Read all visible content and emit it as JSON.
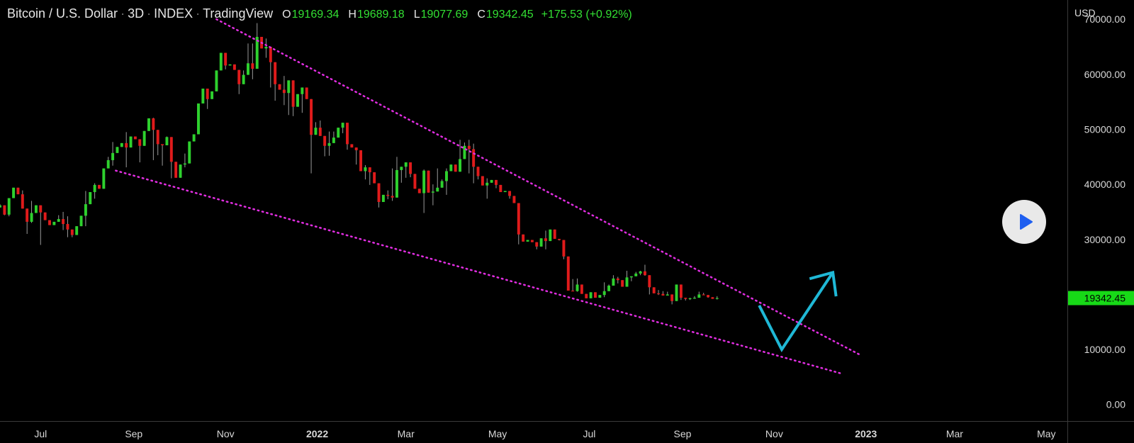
{
  "header": {
    "symbol": "Bitcoin / U.S. Dollar",
    "interval": "3D",
    "exchange": "INDEX",
    "source": "TradingView",
    "open_label": "O",
    "open": "19169.34",
    "high_label": "H",
    "high": "19689.18",
    "low_label": "L",
    "low": "19077.69",
    "close_label": "C",
    "close": "19342.45",
    "change": "+175.53 (+0.92%)"
  },
  "price_axis": {
    "currency": "USD"
  },
  "current_price_label": "19342.45",
  "colors": {
    "up": "#2ed12e",
    "down": "#e01b1b",
    "trendline": "#e22ee2",
    "projection": "#1fb8d6",
    "price_tag": "#17d917",
    "text_green": "#33e033"
  },
  "icons": {
    "play": "play-icon"
  },
  "chart_data": {
    "type": "candlestick",
    "title": "Bitcoin / U.S. Dollar · 3D · INDEX",
    "ylabel": "USD",
    "ylim": [
      -3000,
      73500
    ],
    "xlim": [
      "2021-06-04",
      "2023-05-15"
    ],
    "y_ticks": [
      0,
      10000,
      20000,
      30000,
      40000,
      50000,
      60000,
      70000
    ],
    "y_tick_labels": [
      "0.00",
      "10000.00",
      "20000.00",
      "30000.00",
      "40000.00",
      "50000.00",
      "60000.00",
      "70000.00"
    ],
    "x_ticks": [
      {
        "label": "Jul",
        "date": "2021-07-01",
        "bold": false
      },
      {
        "label": "Sep",
        "date": "2021-09-01",
        "bold": false
      },
      {
        "label": "Nov",
        "date": "2021-11-01",
        "bold": false
      },
      {
        "label": "2022",
        "date": "2022-01-01",
        "bold": true
      },
      {
        "label": "Mar",
        "date": "2022-03-01",
        "bold": false
      },
      {
        "label": "May",
        "date": "2022-05-01",
        "bold": false
      },
      {
        "label": "Jul",
        "date": "2022-07-01",
        "bold": false
      },
      {
        "label": "Sep",
        "date": "2022-09-01",
        "bold": false
      },
      {
        "label": "Nov",
        "date": "2022-11-01",
        "bold": false
      },
      {
        "label": "2023",
        "date": "2023-01-01",
        "bold": true
      },
      {
        "label": "Mar",
        "date": "2023-03-01",
        "bold": false
      },
      {
        "label": "May",
        "date": "2023-05-01",
        "bold": false
      }
    ],
    "start_date": "2021-06-04",
    "period_days": 3,
    "closes": [
      36200,
      34500,
      37500,
      39400,
      38200,
      35600,
      33200,
      34800,
      36200,
      34900,
      33500,
      32600,
      33200,
      33700,
      32800,
      31800,
      30800,
      32400,
      34300,
      36400,
      38600,
      39900,
      39200,
      42900,
      44400,
      45700,
      46800,
      47500,
      46700,
      48700,
      48200,
      47000,
      49700,
      52000,
      49900,
      47300,
      47100,
      48600,
      44100,
      41200,
      43600,
      43800,
      47800,
      49100,
      54700,
      57400,
      55500,
      56900,
      60700,
      63900,
      61600,
      61800,
      60800,
      58200,
      59900,
      62000,
      61000,
      66800,
      64700,
      65000,
      62200,
      58200,
      57200,
      56600,
      58900,
      54100,
      56400,
      57600,
      55500,
      49000,
      50300,
      48800,
      47000,
      47500,
      48500,
      50300,
      51200,
      47300,
      46700,
      46200,
      42400,
      43100,
      42200,
      40200,
      36800,
      38100,
      37900,
      37600,
      42600,
      43200,
      44000,
      41900,
      39200,
      38400,
      42500,
      38500,
      38700,
      39400,
      40600,
      42400,
      43600,
      42300,
      44600,
      47000,
      46400,
      43200,
      41500,
      39800,
      40300,
      40800,
      39900,
      38600,
      38800,
      37900,
      36600,
      30900,
      29600,
      29900,
      29500,
      28700,
      30200,
      29700,
      31800,
      30100,
      29900,
      26900,
      20700,
      20600,
      21800,
      20100,
      19300,
      20400,
      19400,
      19900,
      20600,
      21600,
      22900,
      22600,
      21400,
      23100,
      23300,
      23800,
      24200,
      23500,
      21300,
      20200,
      20100,
      19800,
      20000,
      18800,
      21800,
      19400,
      19200,
      19300,
      19400,
      20000,
      19900,
      19500,
      19200,
      19342
    ],
    "ranges": [
      [
        36400,
        37400
      ],
      [
        34300,
        34400
      ],
      [
        34400,
        34200
      ],
      [
        38000,
        39100
      ],
      [
        36400,
        38400
      ],
      [
        38900,
        42600
      ],
      [
        35600,
        31000
      ],
      [
        37000,
        33000
      ],
      [
        31900,
        37500
      ],
      [
        35700,
        29000
      ],
      [
        32700,
        34000
      ],
      [
        33000,
        33600
      ],
      [
        31800,
        35500
      ],
      [
        34400,
        33700
      ],
      [
        35000,
        31700
      ],
      [
        34200,
        30400
      ],
      [
        30800,
        30400
      ],
      [
        30200,
        35000
      ],
      [
        31200,
        35200
      ],
      [
        38800,
        32400
      ],
      [
        33800,
        39900
      ],
      [
        40200,
        37400
      ],
      [
        38000,
        39700
      ],
      [
        39900,
        43200
      ],
      [
        45000,
        44000
      ],
      [
        47700,
        43400
      ],
      [
        45200,
        47800
      ],
      [
        47500,
        49800
      ],
      [
        49500,
        43100
      ],
      [
        46700,
        49600
      ],
      [
        48300,
        50000
      ],
      [
        45900,
        44000
      ],
      [
        49300,
        49900
      ],
      [
        50600,
        54500
      ],
      [
        52100,
        44400
      ],
      [
        47400,
        45300
      ],
      [
        44400,
        43400
      ],
      [
        48700,
        47300
      ],
      [
        44000,
        41100
      ],
      [
        41100,
        41700
      ],
      [
        42300,
        43500
      ],
      [
        45600,
        43100
      ],
      [
        46700,
        49900
      ],
      [
        48900,
        49300
      ],
      [
        53500,
        56300
      ],
      [
        55400,
        56700
      ],
      [
        56500,
        53700
      ],
      [
        56600,
        56000
      ],
      [
        60500,
        60900
      ],
      [
        61700,
        66500
      ],
      [
        59000,
        60900
      ],
      [
        61000,
        67000
      ],
      [
        59300,
        62400
      ],
      [
        60600,
        56400
      ],
      [
        60700,
        61700
      ],
      [
        65600,
        62300
      ],
      [
        65600,
        59100
      ],
      [
        69300,
        64800
      ],
      [
        66200,
        68200
      ],
      [
        66500,
        63000
      ],
      [
        61000,
        57600
      ],
      [
        58600,
        55200
      ],
      [
        57500,
        58800
      ],
      [
        59700,
        54400
      ],
      [
        58300,
        52600
      ],
      [
        57900,
        52400
      ],
      [
        56000,
        54700
      ],
      [
        55100,
        53000
      ],
      [
        56100,
        55700
      ],
      [
        49200,
        42000
      ],
      [
        51300,
        50500
      ],
      [
        51600,
        48800
      ],
      [
        46700,
        45100
      ],
      [
        49600,
        45200
      ],
      [
        49600,
        49000
      ],
      [
        47800,
        50900
      ],
      [
        50800,
        49300
      ],
      [
        46600,
        46300
      ],
      [
        46200,
        49000
      ],
      [
        44500,
        43600
      ],
      [
        42600,
        44200
      ],
      [
        43500,
        40900
      ],
      [
        41200,
        39900
      ],
      [
        40700,
        41000
      ],
      [
        36800,
        35800
      ],
      [
        37900,
        37900
      ],
      [
        38900,
        37300
      ],
      [
        42900,
        37000
      ],
      [
        45000,
        44500
      ],
      [
        42700,
        40300
      ],
      [
        40800,
        41200
      ],
      [
        43000,
        41300
      ],
      [
        40000,
        39300
      ],
      [
        37800,
        38400
      ],
      [
        42700,
        34800
      ],
      [
        37500,
        39100
      ],
      [
        40000,
        36200
      ],
      [
        42900,
        41400
      ],
      [
        40900,
        40800
      ],
      [
        42900,
        38100
      ],
      [
        42200,
        42600
      ],
      [
        42500,
        44100
      ],
      [
        48100,
        47500
      ],
      [
        47600,
        46500
      ],
      [
        48100,
        42000
      ],
      [
        47400,
        40200
      ],
      [
        40800,
        40900
      ],
      [
        39000,
        40000
      ],
      [
        41100,
        37400
      ],
      [
        37600,
        42700
      ],
      [
        38300,
        39300
      ],
      [
        39100,
        40500
      ],
      [
        37200,
        39100
      ],
      [
        35700,
        37400
      ],
      [
        35600,
        37700
      ],
      [
        30600,
        29100
      ],
      [
        30600,
        30900
      ],
      [
        28500,
        30100
      ],
      [
        28500,
        30300
      ],
      [
        28800,
        28200
      ],
      [
        30100,
        29800
      ],
      [
        31600,
        28200
      ],
      [
        29600,
        30100
      ],
      [
        31800,
        30800
      ],
      [
        29500,
        29800
      ],
      [
        26800,
        26400
      ],
      [
        20500,
        20900
      ],
      [
        22800,
        21200
      ],
      [
        22900,
        20500
      ],
      [
        19300,
        20500
      ],
      [
        19900,
        20700
      ],
      [
        18900,
        22400
      ],
      [
        18700,
        20500
      ],
      [
        19300,
        20900
      ],
      [
        22200,
        19500
      ],
      [
        21800,
        21900
      ],
      [
        23500,
        23700
      ],
      [
        23200,
        22000
      ],
      [
        21100,
        23900
      ],
      [
        24300,
        22000
      ],
      [
        23200,
        22400
      ],
      [
        24100,
        23800
      ],
      [
        24300,
        23500
      ],
      [
        25400,
        23400
      ],
      [
        21600,
        20000
      ],
      [
        21300,
        20200
      ],
      [
        20800,
        19900
      ],
      [
        20600,
        20200
      ],
      [
        20500,
        19900
      ],
      [
        18800,
        18200
      ],
      [
        21800,
        21500
      ],
      [
        19300,
        19000
      ],
      [
        18900,
        18900
      ],
      [
        19400,
        19000
      ],
      [
        19700,
        19200
      ],
      [
        20500,
        19500
      ],
      [
        20300,
        19900
      ],
      [
        19400,
        19400
      ],
      [
        19000,
        19700
      ],
      [
        19689,
        19077
      ]
    ],
    "annotations": [
      {
        "type": "trendline",
        "name": "upper-trendline",
        "style": "dotted",
        "from": {
          "date": "2021-10-26",
          "price": 70000
        },
        "to": {
          "date": "2022-12-29",
          "price": 8900
        }
      },
      {
        "type": "trendline",
        "name": "lower-trendline",
        "style": "dotted",
        "from": {
          "date": "2021-08-20",
          "price": 42500
        },
        "to": {
          "date": "2022-12-16",
          "price": 5600
        }
      },
      {
        "type": "arrow",
        "name": "projection-arrow",
        "points": [
          {
            "date": "2022-10-22",
            "price": 18000
          },
          {
            "date": "2022-11-06",
            "price": 10000
          },
          {
            "date": "2022-12-10",
            "price": 24000
          }
        ]
      }
    ]
  }
}
